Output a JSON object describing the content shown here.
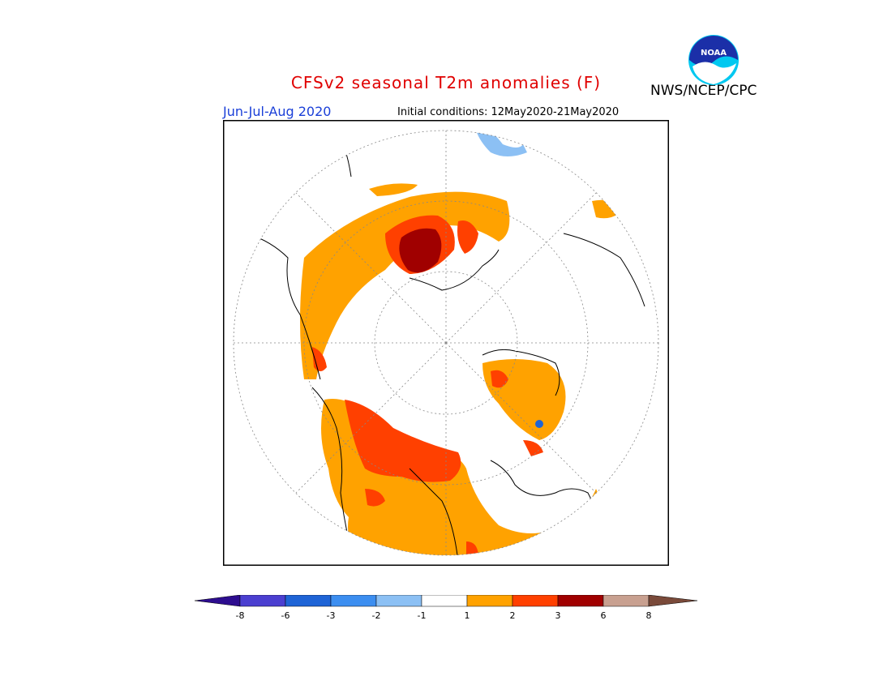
{
  "header": {
    "title": "CFSv2 seasonal T2m anomalies (F)",
    "period": "Jun-Jul-Aug 2020",
    "initial_conditions": "Initial conditions: 12May2020-21May2020",
    "source": "NWS/NCEP/CPC",
    "logo_text": "NOAA"
  },
  "map": {
    "projection": "north-polar-stereographic",
    "variable": "2m temperature anomaly",
    "units": "F"
  },
  "legend": {
    "ticks": [
      "-8",
      "-6",
      "-3",
      "-2",
      "-1",
      "1",
      "2",
      "3",
      "6",
      "8"
    ],
    "colors": [
      "#2d0d8f",
      "#4b3fd0",
      "#1f64d6",
      "#3c8ef0",
      "#8cc0f4",
      "#ffffff",
      "#ffa200",
      "#ff4000",
      "#a00000",
      "#c8a090",
      "#7a4a3a"
    ]
  }
}
